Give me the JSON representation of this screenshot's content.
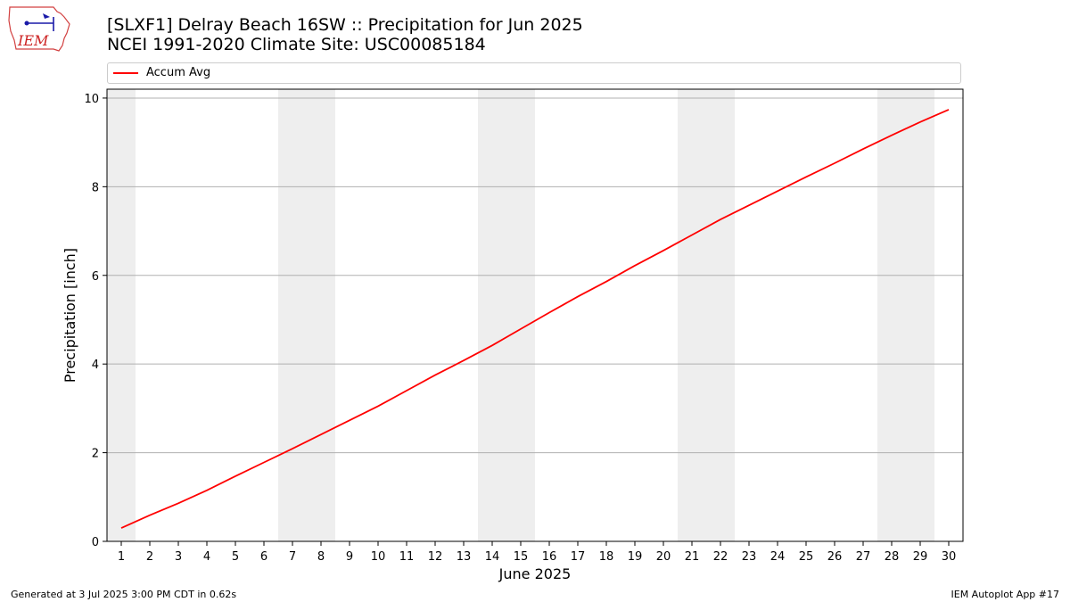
{
  "logo": {
    "text": "IEM"
  },
  "header": {
    "title_line1": "[SLXF1] Delray Beach 16SW :: Precipitation for Jun 2025",
    "title_line2": "NCEI 1991-2020 Climate Site: USC00085184"
  },
  "colors": {
    "line": "#ff0000",
    "weekend_band": "#eeeeee",
    "grid": "#b0b0b0"
  },
  "chart_data": {
    "type": "line",
    "title": "[SLXF1] Delray Beach 16SW :: Precipitation for Jun 2025",
    "subtitle": "NCEI 1991-2020 Climate Site: USC00085184",
    "xlabel": "June 2025",
    "ylabel": "Precipitation [inch]",
    "xlim": [
      0.5,
      30.5
    ],
    "ylim": [
      0,
      10.2
    ],
    "x_ticks": [
      1,
      2,
      3,
      4,
      5,
      6,
      7,
      8,
      9,
      10,
      11,
      12,
      13,
      14,
      15,
      16,
      17,
      18,
      19,
      20,
      21,
      22,
      23,
      24,
      25,
      26,
      27,
      28,
      29,
      30
    ],
    "y_ticks": [
      0,
      2,
      4,
      6,
      8,
      10
    ],
    "grid": "y-major",
    "legend_placement": "top",
    "weekend_days": [
      1,
      7,
      8,
      14,
      15,
      21,
      22,
      28,
      29
    ],
    "series": [
      {
        "name": "Accum Avg",
        "color": "#ff0000",
        "x": [
          1,
          2,
          3,
          4,
          5,
          6,
          7,
          8,
          9,
          10,
          11,
          12,
          13,
          14,
          15,
          16,
          17,
          18,
          19,
          20,
          21,
          22,
          23,
          24,
          25,
          26,
          27,
          28,
          29,
          30
        ],
        "values": [
          0.3,
          0.59,
          0.86,
          1.15,
          1.47,
          1.78,
          2.09,
          2.41,
          2.73,
          3.05,
          3.4,
          3.75,
          4.08,
          4.42,
          4.79,
          5.16,
          5.52,
          5.86,
          6.22,
          6.56,
          6.91,
          7.26,
          7.58,
          7.9,
          8.22,
          8.53,
          8.85,
          9.16,
          9.46,
          9.74
        ]
      }
    ]
  },
  "footer": {
    "generated": "Generated at 3 Jul 2025 3:00 PM CDT in 0.62s",
    "app": "IEM Autoplot App #17"
  }
}
